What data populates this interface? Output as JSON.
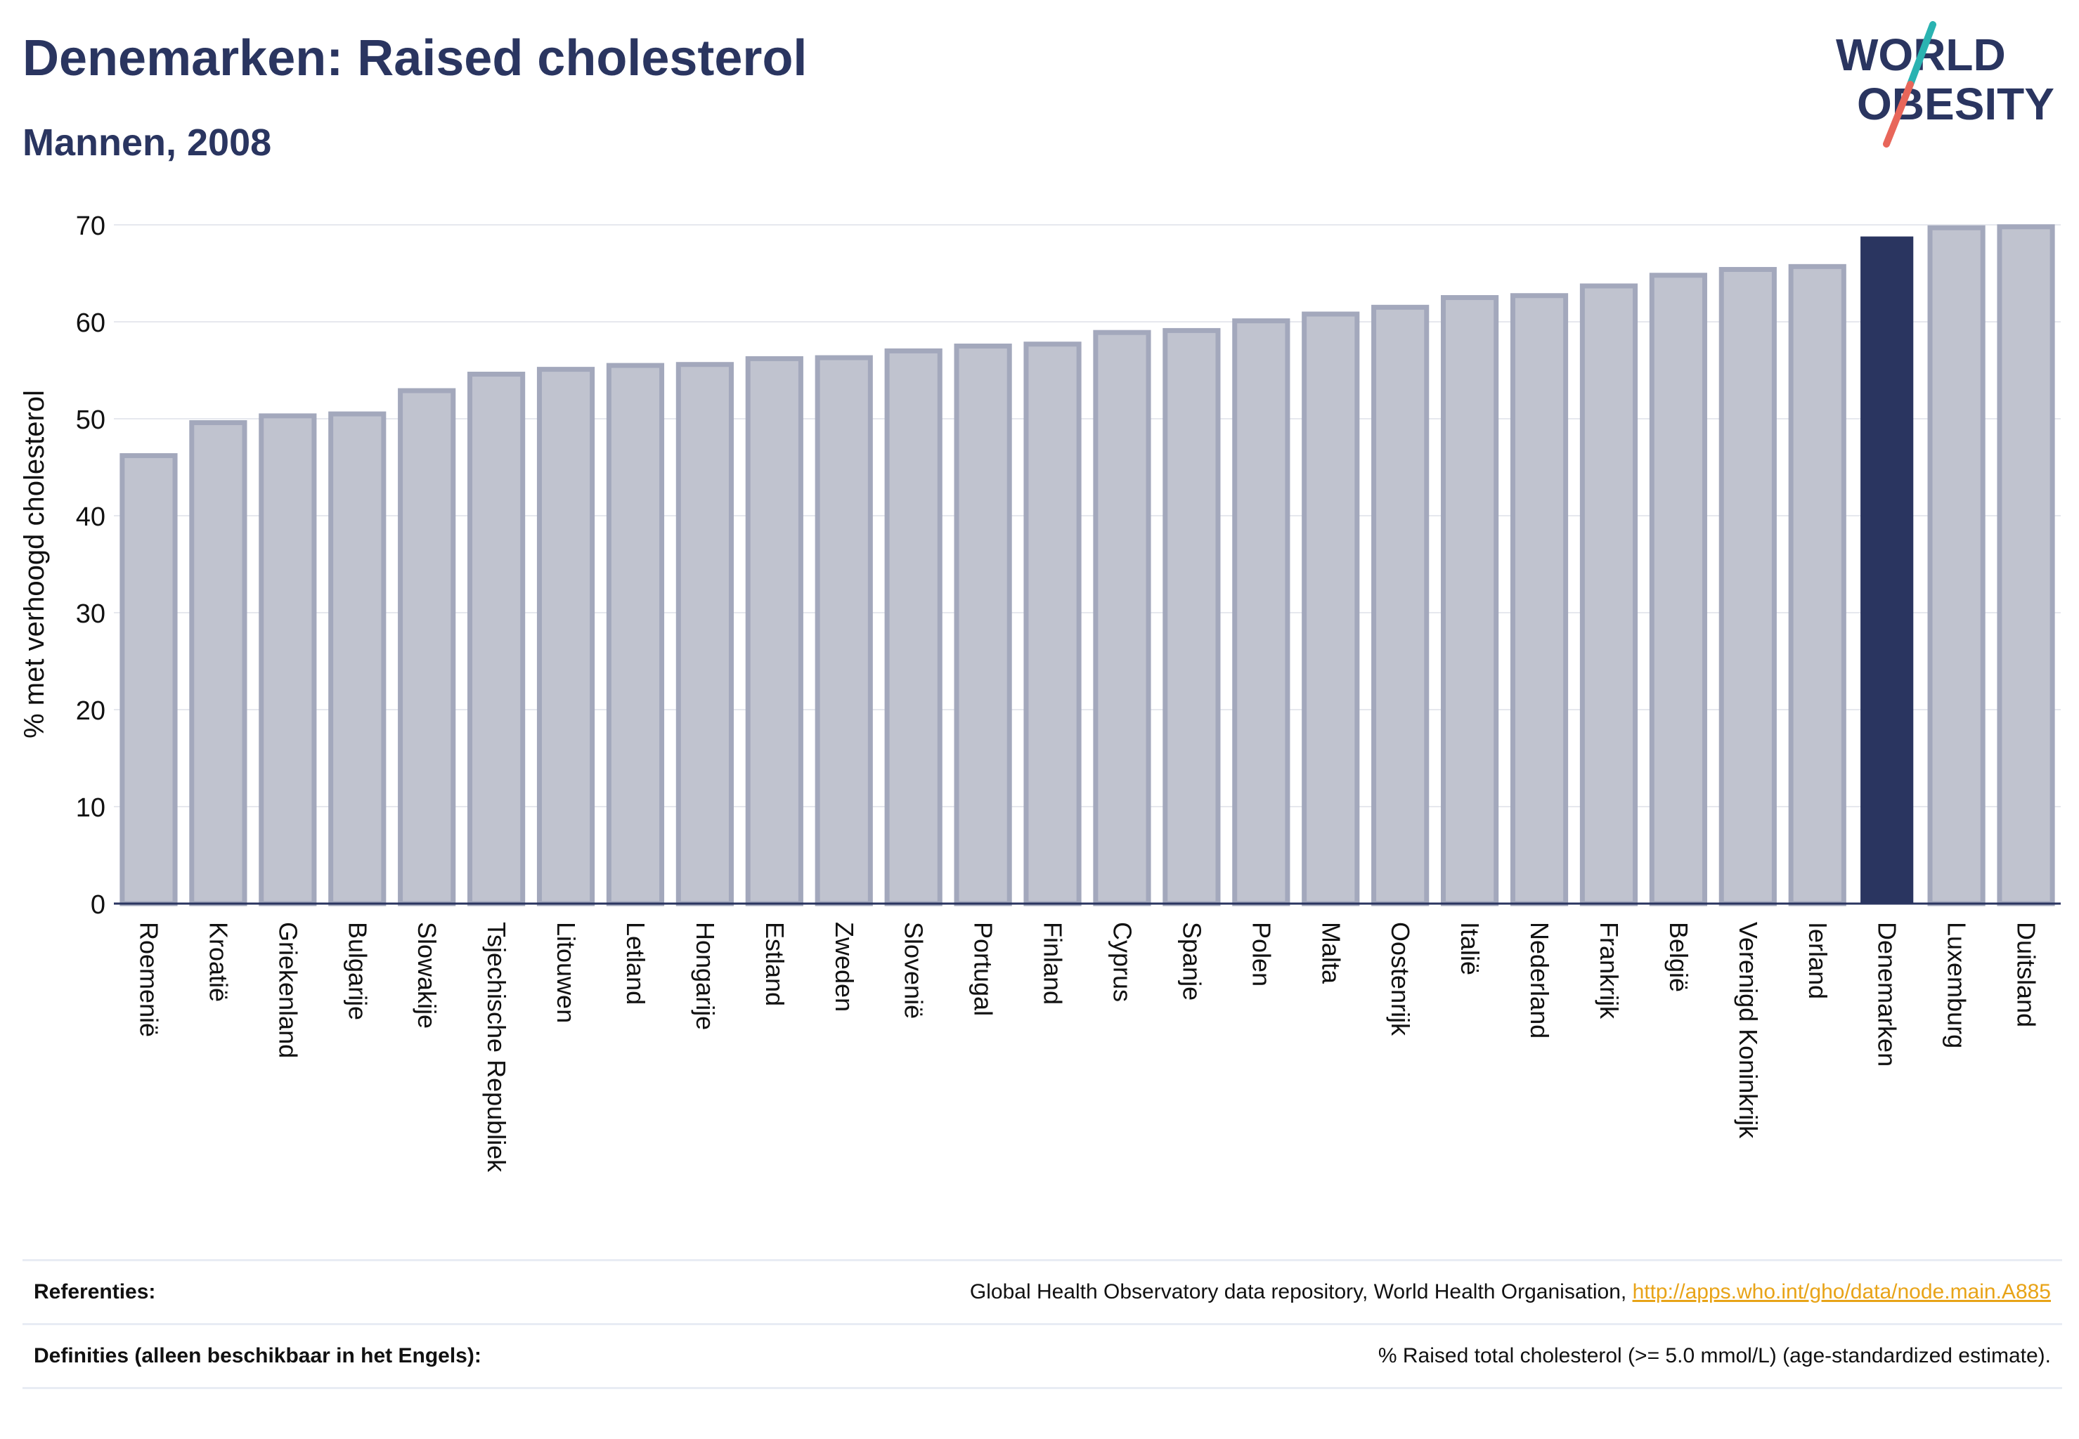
{
  "header": {
    "title": "Denemarken: Raised cholesterol",
    "subtitle": "Mannen, 2008"
  },
  "logo": {
    "line1": "WORLD",
    "line2": "OBESITY",
    "accent_colors": [
      "#2ab3b1",
      "#e8665a"
    ]
  },
  "colors": {
    "bar": "#c0c3cf",
    "bar_border": "#a3a8bc",
    "highlight": "#2a3560",
    "text": "#2a3560"
  },
  "chart_data": {
    "type": "bar",
    "ylabel": "% met verhoogd cholesterol",
    "ylim": [
      0,
      70
    ],
    "yticks": [
      0,
      10,
      20,
      30,
      40,
      50,
      60,
      70
    ],
    "grid": true,
    "highlight": "Denemarken",
    "categories": [
      "Roemenië",
      "Kroatië",
      "Griekenland",
      "Bulgarije",
      "Slowakije",
      "Tsjechische Republiek",
      "Litouwen",
      "Letland",
      "Hongarije",
      "Estland",
      "Zweden",
      "Slovenië",
      "Portugal",
      "Finland",
      "Cyprus",
      "Spanje",
      "Polen",
      "Malta",
      "Oostenrijk",
      "Italië",
      "Nederland",
      "Frankrijk",
      "België",
      "Verenigd Koninkrijk",
      "Ierland",
      "Denemarken",
      "Luxemburg",
      "Duitsland"
    ],
    "values": [
      46.2,
      49.6,
      50.3,
      50.5,
      52.9,
      54.6,
      55.1,
      55.5,
      55.6,
      56.2,
      56.3,
      57.0,
      57.5,
      57.7,
      58.9,
      59.1,
      60.1,
      60.8,
      61.5,
      62.5,
      62.7,
      63.7,
      64.8,
      65.4,
      65.7,
      68.8,
      69.7,
      69.8
    ]
  },
  "references": {
    "label": "Referenties:",
    "text": "Global Health Observatory data repository, World Health Organisation, ",
    "link": "http://apps.who.int/gho/data/node.main.A885"
  },
  "definitions": {
    "label": "Definities (alleen beschikbaar in het Engels):",
    "text": "% Raised total cholesterol (>= 5.0 mmol/L) (age-standardized estimate)."
  }
}
